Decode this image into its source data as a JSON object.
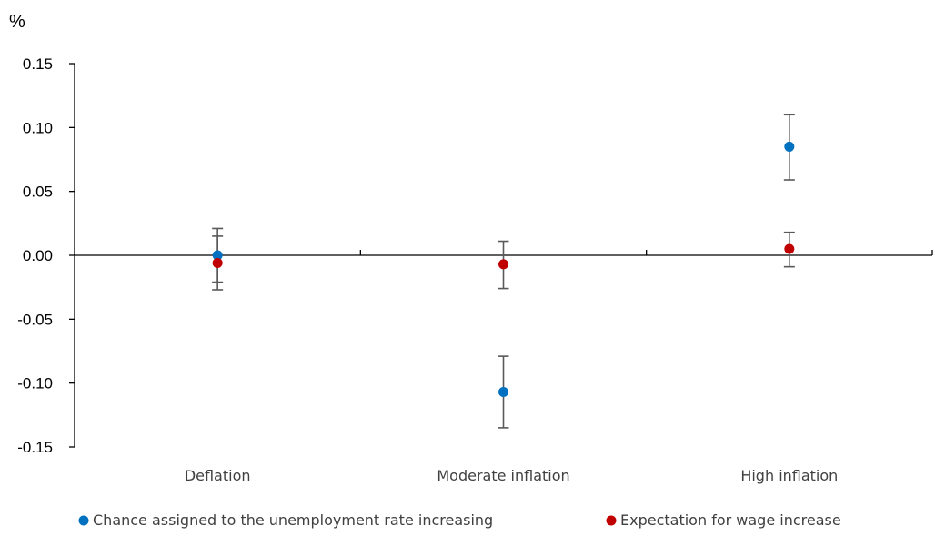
{
  "chart_data": {
    "type": "scatter",
    "unit_label": "%",
    "categories": [
      "Deflation",
      "Moderate inflation",
      "High inflation"
    ],
    "ylim": [
      -0.15,
      0.15
    ],
    "yticks": [
      -0.15,
      -0.1,
      -0.05,
      0.0,
      0.05,
      0.1,
      0.15
    ],
    "ytick_labels": [
      "-0.15",
      "-0.10",
      "-0.05",
      "0.00",
      "0.05",
      "0.10",
      "0.15"
    ],
    "grid": false,
    "legend_position": "bottom",
    "series": [
      {
        "name": "Chance assigned to the unemployment rate increasing",
        "color": "#0070C0",
        "values": [
          0.0,
          -0.107,
          0.085
        ],
        "error_low": [
          -0.021,
          -0.135,
          0.059
        ],
        "error_high": [
          0.021,
          -0.079,
          0.11
        ]
      },
      {
        "name": "Expectation for wage increase",
        "color": "#C00000",
        "values": [
          -0.006,
          -0.007,
          0.005
        ],
        "error_low": [
          -0.027,
          -0.026,
          -0.009
        ],
        "error_high": [
          0.015,
          0.011,
          0.018
        ]
      }
    ],
    "error_bar_color": "#595959"
  }
}
